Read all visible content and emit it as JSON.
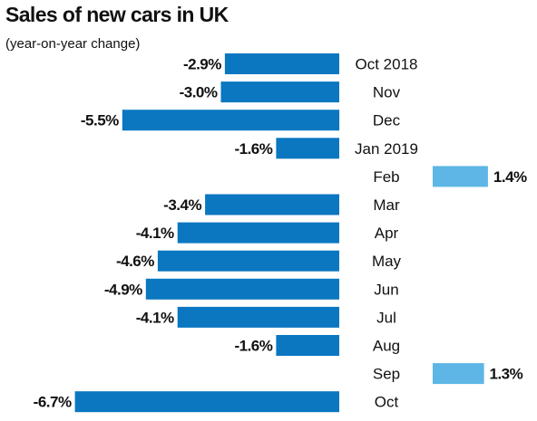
{
  "header": {
    "title": "Sales of new cars in UK",
    "subtitle": "(year-on-year change)"
  },
  "chart_data": {
    "type": "bar",
    "orientation": "horizontal",
    "title": "Sales of new cars in UK",
    "subtitle": "(year-on-year change)",
    "categories": [
      "Oct 2018",
      "Nov",
      "Dec",
      "Jan 2019",
      "Feb",
      "Mar",
      "Apr",
      "May",
      "Jun",
      "Jul",
      "Aug",
      "Sep",
      "Oct"
    ],
    "values": [
      -2.9,
      -3.0,
      -5.5,
      -1.6,
      1.4,
      -3.4,
      -4.1,
      -4.6,
      -4.9,
      -4.1,
      -1.6,
      1.3,
      -6.7
    ],
    "value_labels": [
      "-2.9%",
      "-3.0%",
      "-5.5%",
      "-1.6%",
      "1.4%",
      "-3.4%",
      "-4.1%",
      "-4.6%",
      "-4.9%",
      "-4.1%",
      "-1.6%",
      "1.3%",
      "-6.7%"
    ],
    "unit": "%",
    "grid": false,
    "colors": {
      "negative": "#0a77c0",
      "positive": "#5db6e5",
      "text": "#111111"
    }
  }
}
